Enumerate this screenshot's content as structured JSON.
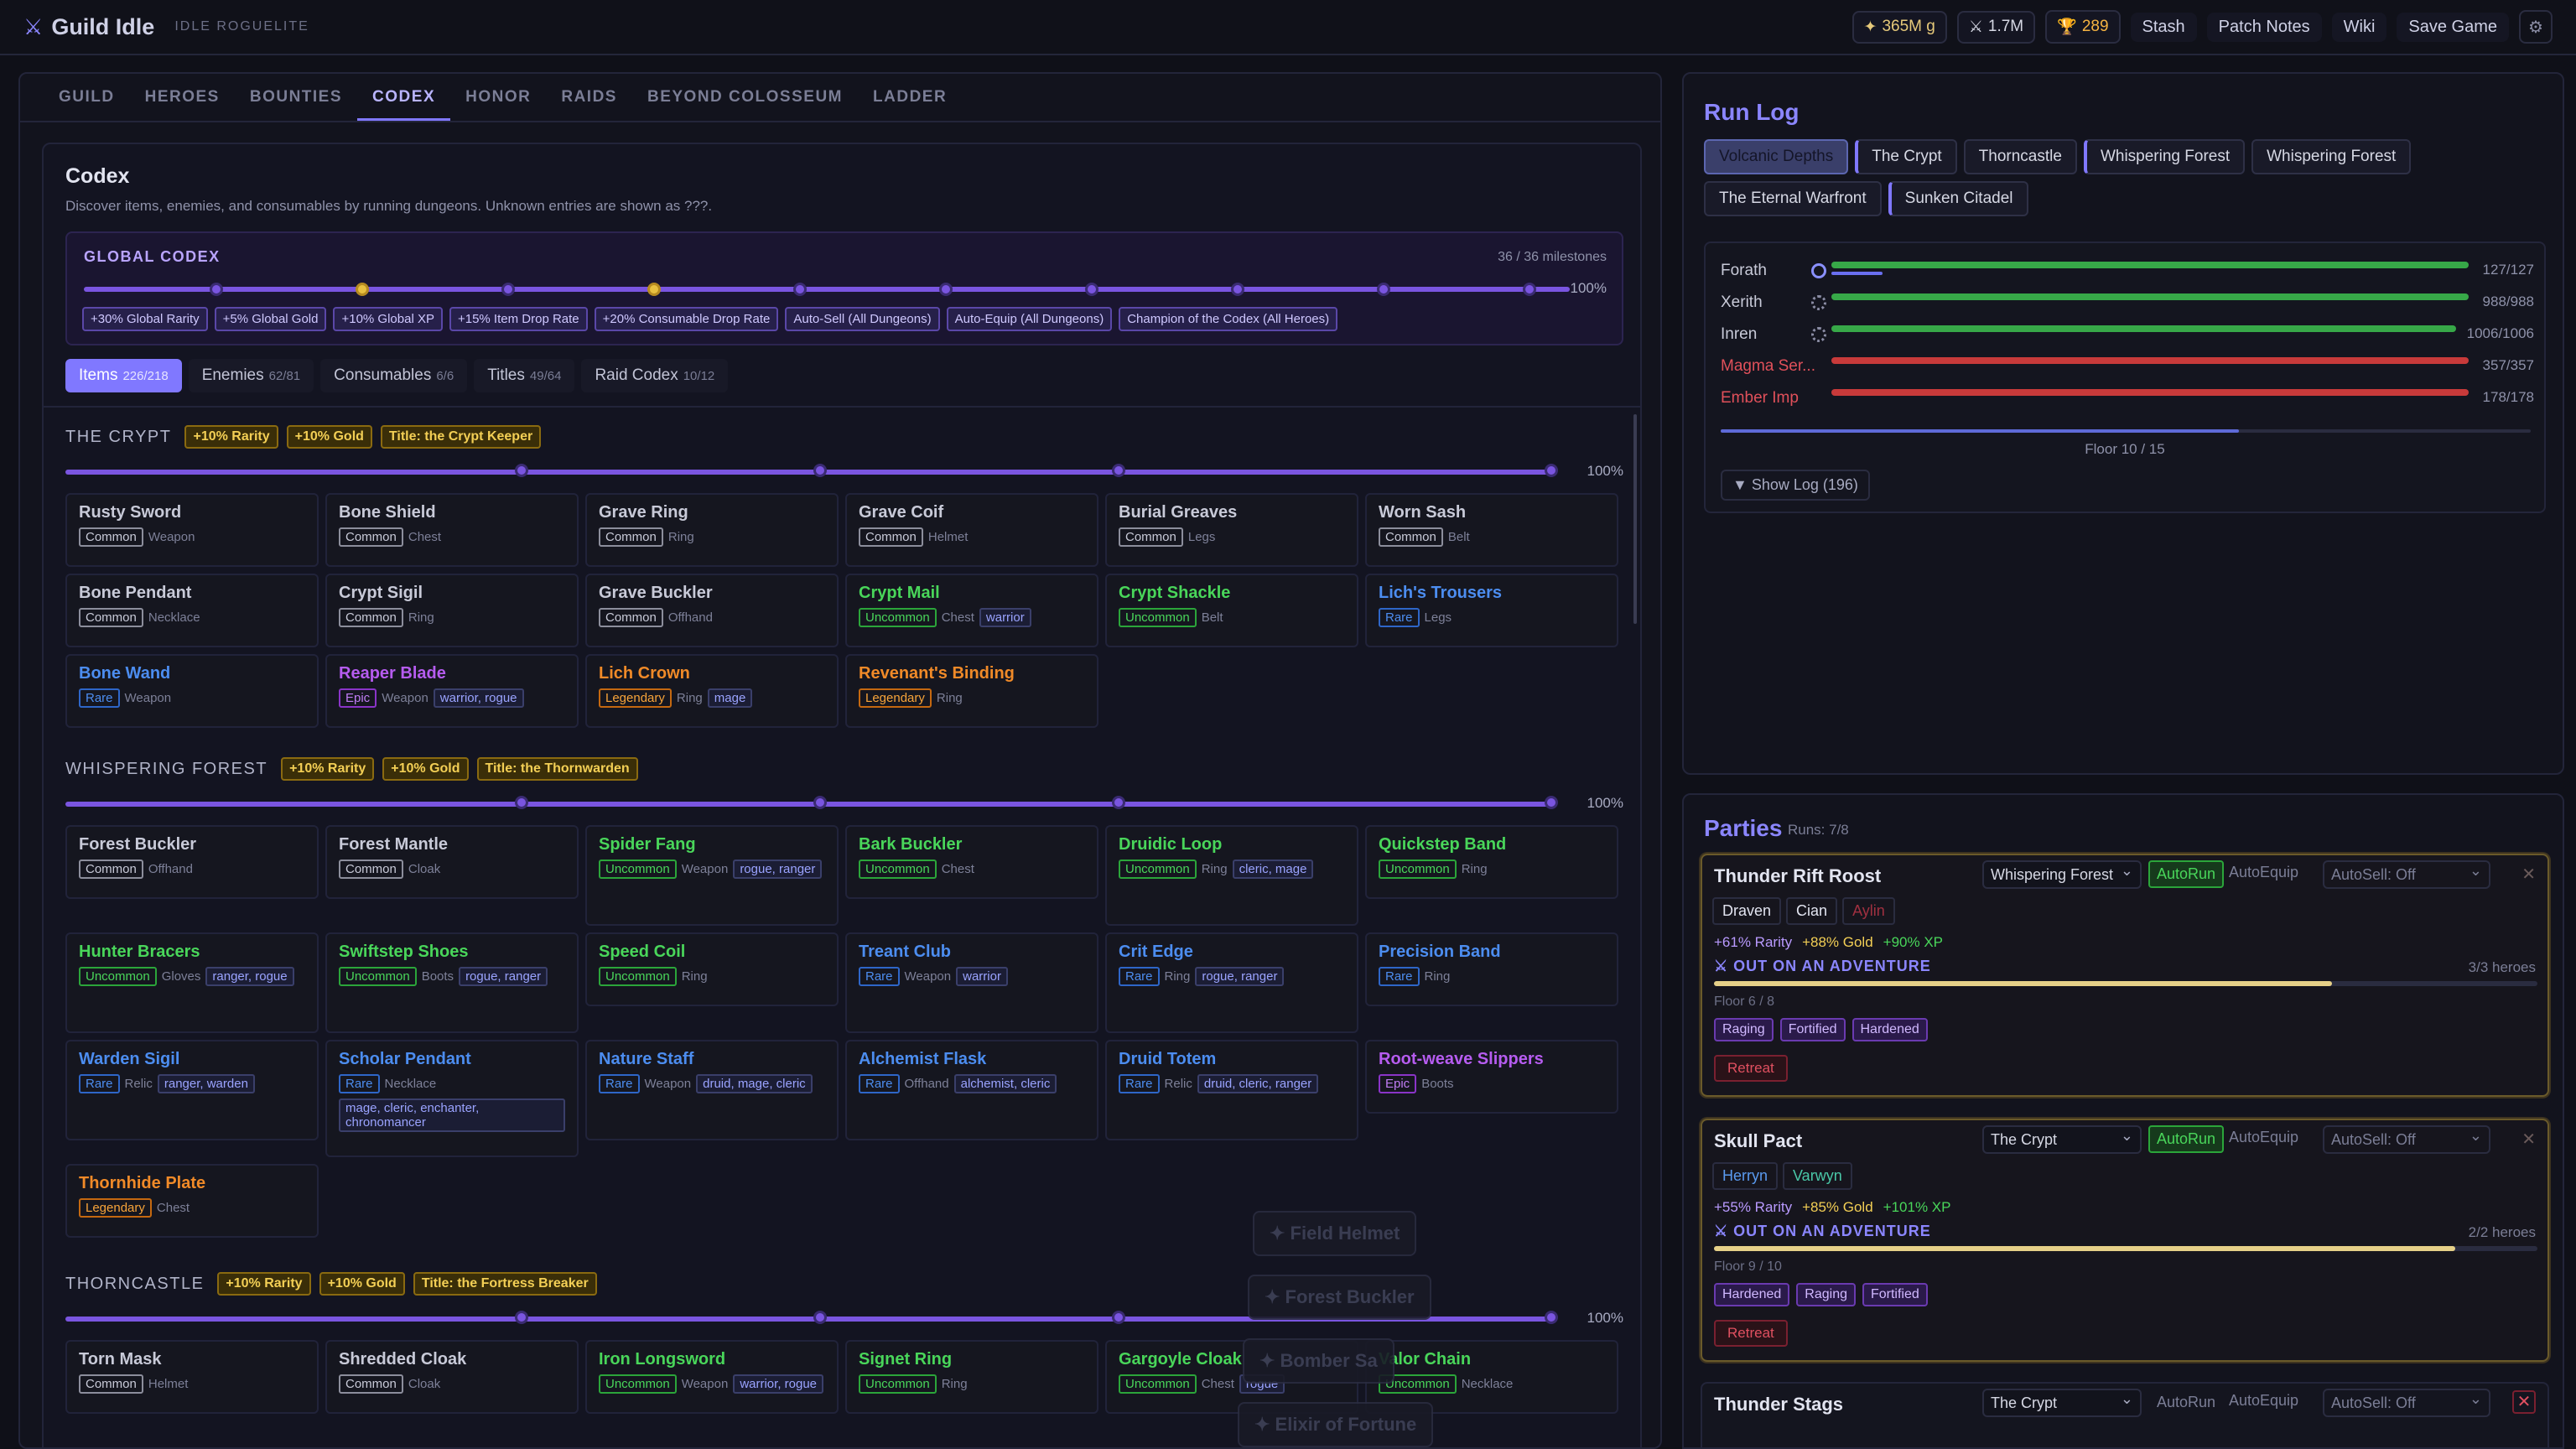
{
  "brand": {
    "name": "Guild Idle",
    "tag": "IDLE ROGUELITE"
  },
  "resources": {
    "gold": "365M g",
    "power": "1.7M",
    "honor": "289"
  },
  "topnav": [
    "Stash",
    "Patch Notes",
    "Wiki",
    "Save Game"
  ],
  "tabs": [
    "GUILD",
    "HEROES",
    "BOUNTIES",
    "CODEX",
    "HONOR",
    "RAIDS",
    "BEYOND COLOSSEUM",
    "LADDER"
  ],
  "codex": {
    "title": "Codex",
    "desc": "Discover items, enemies, and consumables by running dungeons. Unknown entries are shown as ???.",
    "global": {
      "label": "GLOBAL CODEX",
      "milestones": "36 / 36 milestones",
      "pct": "100%",
      "tags": [
        "+30% Global Rarity",
        "+5% Global Gold",
        "+10% Global XP",
        "+15% Item Drop Rate",
        "+20% Consumable Drop Rate",
        "Auto-Sell (All Dungeons)",
        "Auto-Equip (All Dungeons)",
        "Champion of the Codex (All Heroes)"
      ]
    },
    "subtabs": [
      {
        "l": "Items",
        "n": "226/218"
      },
      {
        "l": "Enemies",
        "n": "62/81"
      },
      {
        "l": "Consumables",
        "n": "6/6"
      },
      {
        "l": "Titles",
        "n": "49/64"
      },
      {
        "l": "Raid Codex",
        "n": "10/12"
      }
    ],
    "sections": [
      {
        "name": "THE CRYPT",
        "tags": [
          "+10% Rarity",
          "+10% Gold",
          "Title: the Crypt Keeper"
        ],
        "pct": "100%",
        "items": [
          {
            "n": "Rusty Sword",
            "r": "Common",
            "t": "Weapon"
          },
          {
            "n": "Bone Shield",
            "r": "Common",
            "t": "Chest"
          },
          {
            "n": "Grave Ring",
            "r": "Common",
            "t": "Ring"
          },
          {
            "n": "Grave Coif",
            "r": "Common",
            "t": "Helmet"
          },
          {
            "n": "Burial Greaves",
            "r": "Common",
            "t": "Legs"
          },
          {
            "n": "Worn Sash",
            "r": "Common",
            "t": "Belt"
          },
          {
            "n": "Bone Pendant",
            "r": "Common",
            "t": "Necklace"
          },
          {
            "n": "Crypt Sigil",
            "r": "Common",
            "t": "Ring"
          },
          {
            "n": "Grave Buckler",
            "r": "Common",
            "t": "Offhand"
          },
          {
            "n": "Crypt Mail",
            "r": "Uncommon",
            "t": "Chest",
            "c": "warrior"
          },
          {
            "n": "Crypt Shackle",
            "r": "Uncommon",
            "t": "Belt"
          },
          {
            "n": "Lich's Trousers",
            "r": "Rare",
            "t": "Legs"
          },
          {
            "n": "Bone Wand",
            "r": "Rare",
            "t": "Weapon"
          },
          {
            "n": "Reaper Blade",
            "r": "Epic",
            "t": "Weapon",
            "c": "warrior, rogue"
          },
          {
            "n": "Lich Crown",
            "r": "Legendary",
            "t": "Ring",
            "c": "mage"
          },
          {
            "n": "Revenant's Binding",
            "r": "Legendary",
            "t": "Ring"
          }
        ]
      },
      {
        "name": "WHISPERING FOREST",
        "tags": [
          "+10% Rarity",
          "+10% Gold",
          "Title: the Thornwarden"
        ],
        "pct": "100%",
        "items": [
          {
            "n": "Forest Buckler",
            "r": "Common",
            "t": "Offhand"
          },
          {
            "n": "Forest Mantle",
            "r": "Common",
            "t": "Cloak"
          },
          {
            "n": "Spider Fang",
            "r": "Uncommon",
            "t": "Weapon",
            "c": "rogue, ranger"
          },
          {
            "n": "Bark Buckler",
            "r": "Uncommon",
            "t": "Chest"
          },
          {
            "n": "Druidic Loop",
            "r": "Uncommon",
            "t": "Ring",
            "c": "cleric, mage"
          },
          {
            "n": "Quickstep Band",
            "r": "Uncommon",
            "t": "Ring"
          },
          {
            "n": "Hunter Bracers",
            "r": "Uncommon",
            "t": "Gloves",
            "c": "ranger, rogue"
          },
          {
            "n": "Swiftstep Shoes",
            "r": "Uncommon",
            "t": "Boots",
            "c": "rogue, ranger"
          },
          {
            "n": "Speed Coil",
            "r": "Uncommon",
            "t": "Ring"
          },
          {
            "n": "Treant Club",
            "r": "Rare",
            "t": "Weapon",
            "c": "warrior"
          },
          {
            "n": "Crit Edge",
            "r": "Rare",
            "t": "Ring",
            "c": "rogue, ranger"
          },
          {
            "n": "Precision Band",
            "r": "Rare",
            "t": "Ring"
          },
          {
            "n": "Warden Sigil",
            "r": "Rare",
            "t": "Relic",
            "c": "ranger, warden"
          },
          {
            "n": "Scholar Pendant",
            "r": "Rare",
            "t": "Necklace",
            "c": "mage, cleric, enchanter, chronomancer"
          },
          {
            "n": "Nature Staff",
            "r": "Rare",
            "t": "Weapon",
            "c": "druid, mage, cleric"
          },
          {
            "n": "Alchemist Flask",
            "r": "Rare",
            "t": "Offhand",
            "c": "alchemist, cleric"
          },
          {
            "n": "Druid Totem",
            "r": "Rare",
            "t": "Relic",
            "c": "druid, cleric, ranger"
          },
          {
            "n": "Root-weave Slippers",
            "r": "Epic",
            "t": "Boots"
          },
          {
            "n": "Thornhide Plate",
            "r": "Legendary",
            "t": "Chest"
          }
        ]
      },
      {
        "name": "THORNCASTLE",
        "tags": [
          "+10% Rarity",
          "+10% Gold",
          "Title: the Fortress Breaker"
        ],
        "pct": "100%",
        "items": [
          {
            "n": "Torn Mask",
            "r": "Common",
            "t": "Helmet"
          },
          {
            "n": "Shredded Cloak",
            "r": "Common",
            "t": "Cloak"
          },
          {
            "n": "Iron Longsword",
            "r": "Uncommon",
            "t": "Weapon",
            "c": "warrior, rogue"
          },
          {
            "n": "Signet Ring",
            "r": "Uncommon",
            "t": "Ring"
          },
          {
            "n": "Gargoyle Cloak",
            "r": "Uncommon",
            "t": "Chest",
            "c": "rogue"
          },
          {
            "n": "Valor Chain",
            "r": "Uncommon",
            "t": "Necklace"
          }
        ]
      }
    ]
  },
  "ghosts": [
    "✦ Field Helmet",
    "✦ Forest Buckler",
    "✦ Bomber Sa",
    "✦ Elixir of Fortune"
  ],
  "runlog": {
    "title": "Run Log",
    "tabs": [
      "Volcanic Depths",
      "The Crypt",
      "Thorncastle",
      "Whispering Forest",
      "Whispering Forest",
      "The Eternal Warfront",
      "Sunken Citadel"
    ],
    "combatants": [
      {
        "n": "Forath",
        "v": "127/127",
        "hp": 1,
        "enemy": false,
        "mp": 0.08
      },
      {
        "n": "Xerith",
        "v": "988/988",
        "hp": 1,
        "enemy": false
      },
      {
        "n": "Inren",
        "v": "1006/1006",
        "hp": 0.98,
        "enemy": false
      },
      {
        "n": "Magma Ser...",
        "v": "357/357",
        "hp": 1,
        "enemy": true
      },
      {
        "n": "Ember Imp",
        "v": "178/178",
        "hp": 1,
        "enemy": true
      }
    ],
    "floor": "Floor 10 / 15",
    "showlog": "▼ Show Log (196)"
  },
  "parties": {
    "title": "Parties",
    "runs": "Runs: 7/8",
    "list": [
      {
        "name": "Thunder Rift Roost",
        "dungeon": "Whispering Forest",
        "autorun": "AutoRun",
        "autoequip": "AutoEquip",
        "autosell": "AutoSell: Off",
        "heroes": [
          "Draven",
          "Cian",
          "Aylin"
        ],
        "bonus": {
          "r": "+61% Rarity",
          "g": "+88% Gold",
          "x": "+90% XP"
        },
        "status": "⚔ OUT ON AN ADVENTURE",
        "count": "3/3 heroes",
        "progress": 0.75,
        "floor": "Floor 6 / 8",
        "mods": [
          "Raging",
          "Fortified",
          "Hardened"
        ],
        "retreat": "Retreat"
      },
      {
        "name": "Skull Pact",
        "dungeon": "The Crypt",
        "autorun": "AutoRun",
        "autoequip": "AutoEquip",
        "autosell": "AutoSell: Off",
        "heroes": [
          "Herryn",
          "Varwyn"
        ],
        "bonus": {
          "r": "+55% Rarity",
          "g": "+85% Gold",
          "x": "+101% XP"
        },
        "status": "⚔ OUT ON AN ADVENTURE",
        "count": "2/2 heroes",
        "progress": 0.9,
        "floor": "Floor 9 / 10",
        "mods": [
          "Hardened",
          "Raging",
          "Fortified"
        ],
        "retreat": "Retreat"
      },
      {
        "name": "Thunder Stags",
        "dungeon": "The Crypt",
        "autorun": "AutoRun",
        "autoequip": "AutoEquip",
        "autosell": "AutoSell: Off"
      }
    ]
  }
}
